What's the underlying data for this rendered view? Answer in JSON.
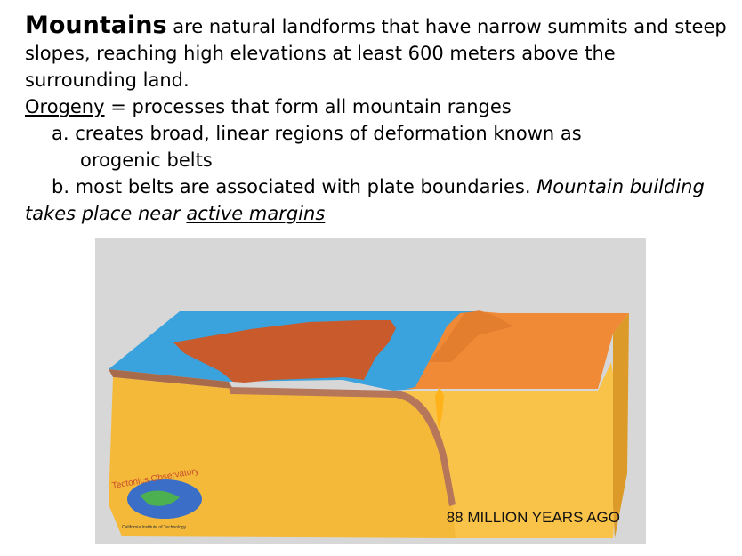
{
  "content": {
    "line1_bold": "Mountains",
    "line1_rest": " are natural landforms that have narrow summits and steep slopes,  reaching high elevations at least 600 meters above the surrounding land.",
    "orogeny_term": "Orogeny",
    "orogeny_def": " = processes that form all mountain ranges",
    "item_a_line1": "a. creates broad, linear regions of deformation known as",
    "item_a_line2": "orogenic belts",
    "item_b_text": "b. most belts are associated with plate boundaries. ",
    "item_b_italic": "Mountain building takes place near ",
    "item_b_italic_underlined": "active margins"
  },
  "figure": {
    "caption": "88 MILLION YEARS AGO",
    "logo_text": "Tectonics Observatory",
    "logo_subtext": "California Institute of Technology",
    "colors": {
      "ocean": "#3aa2dc",
      "continent": "#c85a2c",
      "orange_plate": "#f08a36",
      "mantle": "#f5b93a",
      "background": "#d7d7d7"
    }
  }
}
